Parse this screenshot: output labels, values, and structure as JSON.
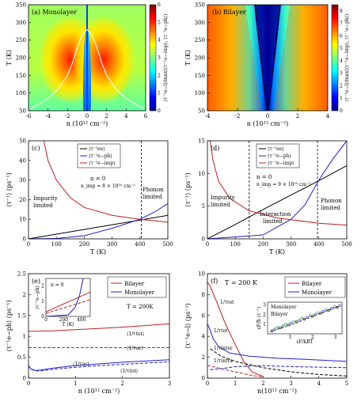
{
  "chart_data": [
    {
      "type": "heatmap",
      "panel_label": "(a) Monolayer",
      "xlabel": "n (10¹² cm⁻²)",
      "ylabel": "T (K)",
      "xlim": [
        -6,
        6
      ],
      "ylim": [
        50,
        350
      ],
      "xticks": [
        "-6",
        "-4",
        "-2",
        "0",
        "2",
        "4",
        "6"
      ],
      "yticks": [
        "50",
        "100",
        "150",
        "200",
        "250",
        "300",
        "350"
      ],
      "colorbar": {
        "label": "⟨τ⁻¹e−l⟩/max(⟨τ⁻¹e−imp⟩, ⟨τ⁻¹e−ph⟩)",
        "ticks": [
          "0",
          "1",
          "2",
          "3",
          "4",
          "5",
          "6"
        ],
        "range": [
          0,
          6
        ]
      },
      "boundary_curve": {
        "x": [
          -5.8,
          -4,
          -3,
          -2,
          -1.5,
          -1,
          -0.5,
          0
        ],
        "y": [
          55,
          85,
          110,
          150,
          185,
          230,
          265,
          280
        ],
        "symmetric": true
      }
    },
    {
      "type": "heatmap",
      "panel_label": "(b) Bilayer",
      "xlabel": "n (10¹² cm⁻²)",
      "ylabel": "T (K)",
      "xlim": [
        -4,
        4
      ],
      "ylim": [
        50,
        350
      ],
      "xticks": [
        "-4",
        "-2",
        "0",
        "2",
        "4"
      ],
      "yticks": [
        "50",
        "100",
        "150",
        "200",
        "250",
        "300",
        "350"
      ],
      "colorbar": {
        "label": "⟨τ⁻¹e−l⟩/max(⟨τ⁻¹e−imp⟩, ⟨τ⁻¹e−ph⟩)",
        "ticks": [
          "0",
          "1",
          "2",
          "3",
          "4",
          "5",
          "6",
          "7",
          "8"
        ],
        "range": [
          0,
          8.5
        ]
      },
      "boundary_curve": {
        "x": [
          0,
          0.2,
          0.4,
          0.6,
          0.8
        ],
        "y": [
          50,
          110,
          180,
          260,
          350
        ],
        "symmetric": true,
        "style": "dashed"
      }
    },
    {
      "type": "line",
      "panel_label": "(c)",
      "xlabel": "T (K)",
      "ylabel": "⟨τ⁻¹⟩ (ps⁻¹)",
      "xlim": [
        0,
        500
      ],
      "ylim": [
        0,
        50
      ],
      "xticks": [
        "0",
        "100",
        "200",
        "300",
        "400",
        "500"
      ],
      "yticks": [
        "0",
        "10",
        "20",
        "30",
        "40",
        "50"
      ],
      "legend_position": "top-center",
      "annotations": [
        "n = 0",
        "n_imp = 8 × 10¹⁰ cm⁻²",
        "Impurity",
        "limited",
        "Phonon",
        "limited"
      ],
      "vline_x": 405,
      "series": [
        {
          "name": "⟨τ⁻¹ee⟩",
          "color": "#000000",
          "x": [
            0,
            100,
            200,
            300,
            400,
            500
          ],
          "y": [
            0,
            2.4,
            4.8,
            7.2,
            9.6,
            12
          ]
        },
        {
          "name": "⟨τ⁻¹e−ph⟩",
          "color": "#1f1fcc",
          "x": [
            0,
            100,
            200,
            300,
            400,
            450,
            500
          ],
          "y": [
            0,
            0.2,
            1.6,
            5.4,
            10,
            13.5,
            18
          ]
        },
        {
          "name": "⟨τ⁻¹e−imp⟩",
          "color": "#c02020",
          "x": [
            55,
            70,
            100,
            150,
            200,
            300,
            400,
            500
          ],
          "y": [
            50,
            40,
            30,
            21,
            16,
            12,
            10,
            8.5
          ]
        }
      ]
    },
    {
      "type": "line",
      "panel_label": "(d)",
      "xlabel": "T (K)",
      "ylabel": "⟨τ⁻¹⟩ (ps⁻¹)",
      "xlim": [
        0,
        500
      ],
      "ylim": [
        0,
        15
      ],
      "xticks": [
        "0",
        "100",
        "200",
        "300",
        "400",
        "500"
      ],
      "yticks": [
        "0",
        "5",
        "10",
        "15"
      ],
      "legend_position": "top-center",
      "annotations": [
        "n = 0",
        "n_imp = 9 × 10¹⁰ cm⁻²",
        "Impurity",
        "limited",
        "Interaction",
        "limited",
        "Phonon",
        "limited"
      ],
      "vlines_x": [
        150,
        395
      ],
      "series": [
        {
          "name": "⟨τ⁻¹ee⟩",
          "color": "#000000",
          "x": [
            0,
            100,
            200,
            300,
            400,
            500
          ],
          "y": [
            0,
            2.2,
            4.5,
            6.7,
            8.9,
            11.2
          ]
        },
        {
          "name": "⟨τ⁻¹e−ph⟩",
          "color": "#1f1fcc",
          "x": [
            0,
            200,
            300,
            350,
            400,
            450,
            500
          ],
          "y": [
            0,
            0.6,
            3,
            5.2,
            9,
            12.2,
            15
          ]
        },
        {
          "name": "⟨τ⁻¹e−imp⟩",
          "color": "#c02020",
          "x": [
            10,
            20,
            40,
            80,
            150,
            250,
            400,
            500
          ],
          "y": [
            15,
            12,
            8.8,
            6.2,
            4.3,
            3.2,
            2.4,
            2.1
          ]
        }
      ]
    },
    {
      "type": "line",
      "panel_label": "(e)",
      "xlabel": "n (10¹² cm⁻²)",
      "ylabel": "⟨τ⁻¹e−ph⟩ (ps⁻¹)",
      "xlim": [
        0,
        3
      ],
      "ylim": [
        0,
        2.5
      ],
      "xticks": [
        "0",
        "1",
        "2",
        "3"
      ],
      "yticks": [
        "0",
        "0.5",
        "1",
        "1.5",
        "2",
        "2.5"
      ],
      "legend_position": "top-right",
      "annotations": [
        "T = 200K",
        "⟨1/τtot⟩",
        "⟨1/τac⟩",
        "⟨1/τac⟩",
        "⟨1/τtot⟩"
      ],
      "series": [
        {
          "name": "Bilayer",
          "color": "#c02020",
          "x": [
            0,
            0.5,
            1,
            1.5,
            2,
            2.5,
            3
          ],
          "y": [
            1.12,
            1.13,
            1.16,
            1.19,
            1.22,
            1.26,
            1.3
          ]
        },
        {
          "name": "Bilayer ac",
          "color": "#c02020",
          "dash": true,
          "x": [
            0,
            3
          ],
          "y": [
            0.73,
            0.73
          ]
        },
        {
          "name": "Monolayer",
          "color": "#1f1fcc",
          "x": [
            0,
            0.05,
            0.15,
            0.3,
            0.6,
            1,
            1.5,
            2,
            2.5,
            3
          ],
          "y": [
            0.3,
            0.22,
            0.18,
            0.2,
            0.25,
            0.3,
            0.34,
            0.38,
            0.41,
            0.44
          ]
        },
        {
          "name": "Monolayer ac",
          "color": "#1f1fcc",
          "dash": true,
          "x": [
            0,
            0.05,
            0.15,
            0.3,
            0.6,
            1,
            1.5,
            2,
            2.5,
            3
          ],
          "y": [
            0.3,
            0.22,
            0.17,
            0.18,
            0.22,
            0.26,
            0.3,
            0.33,
            0.36,
            0.39
          ]
        }
      ],
      "inset": {
        "xlabel": "T (K)",
        "ylabel": "⟨τ⁻¹e−ph⟩",
        "xlim": [
          0,
          500
        ],
        "ylim": [
          0,
          2.5
        ],
        "xticks": [
          "0",
          "200",
          "400"
        ],
        "yticks": [
          "0",
          "1",
          "2"
        ],
        "annotation": "n = 0",
        "series": [
          {
            "color": "#c02020",
            "x": [
              0,
              500
            ],
            "y": [
              0.3,
              1.6
            ]
          },
          {
            "color": "#c02020",
            "dash": true,
            "x": [
              0,
              500
            ],
            "y": [
              0.2,
              1.1
            ]
          },
          {
            "color": "#1f1fcc",
            "x": [
              0,
              250,
              330,
              380,
              420
            ],
            "y": [
              0,
              0.1,
              0.6,
              1.4,
              2.5
            ]
          }
        ]
      }
    },
    {
      "type": "line",
      "panel_label": "(f)",
      "xlabel": "n(10¹² cm⁻²)",
      "ylabel": "⟨τ⁻¹e−l⟩ (ps⁻¹)",
      "xlim": [
        0,
        5
      ],
      "ylim": [
        0,
        10
      ],
      "xticks": [
        "0",
        "1",
        "2",
        "3",
        "4",
        "5"
      ],
      "yticks": [
        "0",
        "2",
        "4",
        "6",
        "8",
        "10"
      ],
      "legend_position": "top-right",
      "annotations": [
        "T = 200 K",
        "1/τtot",
        "1/τtot",
        "1/τintra",
        "1/τinter"
      ],
      "series": [
        {
          "name": "Bilayer",
          "color": "#c02020",
          "x": [
            0,
            0.1,
            0.3,
            0.6,
            1,
            1.3,
            1.6,
            2
          ],
          "y": [
            9.2,
            8.8,
            7.5,
            5.5,
            3.2,
            1.6,
            0.6,
            0.15
          ]
        },
        {
          "name": "Bilayer intra",
          "color": "#c02020",
          "dash": true,
          "x": [
            0,
            0.2,
            0.5,
            1,
            1.5,
            2
          ],
          "y": [
            1.2,
            1.1,
            0.9,
            0.6,
            0.3,
            0.1
          ]
        },
        {
          "name": "Monolayer",
          "color": "#1f1fcc",
          "x": [
            0,
            0.1,
            0.2,
            0.4,
            0.8,
            1.5,
            2.5,
            3.5,
            5
          ],
          "y": [
            5.2,
            4.6,
            3.8,
            3,
            2.4,
            2.1,
            1.9,
            1.8,
            1.6
          ]
        },
        {
          "name": "Monolayer intra",
          "color": "#1f1fcc",
          "dash": true,
          "x": [
            0.1,
            0.5,
            1,
            2,
            3,
            5
          ],
          "y": [
            0.8,
            0.9,
            1.1,
            1.2,
            1.1,
            1
          ]
        },
        {
          "name": "Monolayer inter",
          "color": "#000000",
          "dash": true,
          "x": [
            0.1,
            0.5,
            1,
            2,
            3,
            4,
            5
          ],
          "y": [
            2.8,
            2.1,
            1.6,
            1,
            0.6,
            0.35,
            0.2
          ]
        }
      ],
      "inset": {
        "xlabel": "εF/kBT",
        "ylabel": "εF/ħ ⟨τ⁻¹⟩",
        "xlim": [
          0,
          3.3
        ],
        "ylim": [
          0,
          3.3
        ],
        "xticks": [
          "1",
          "2",
          "3"
        ],
        "yticks": [
          "1",
          "2",
          "3"
        ],
        "legend": [
          "Monolayer",
          "Bilayer"
        ]
      }
    }
  ]
}
